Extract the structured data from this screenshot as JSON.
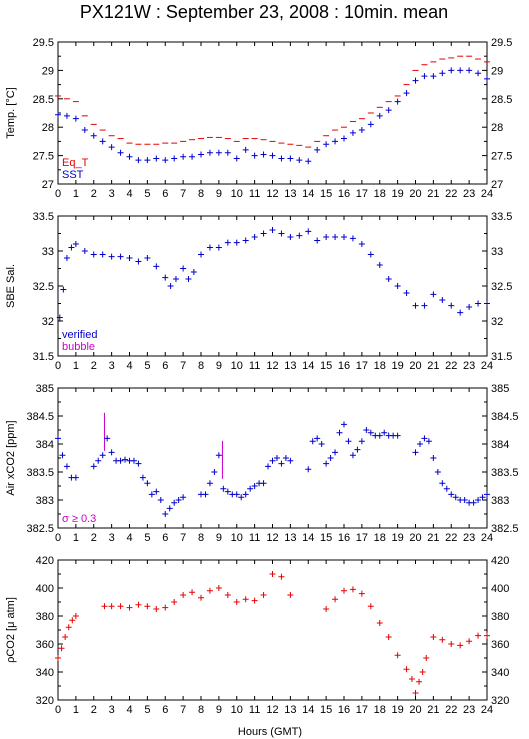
{
  "title": "PX121W : September 23, 2008 : 10min. mean",
  "xlabel": "Hours (GMT)",
  "colors": {
    "red": "#e60000",
    "blue": "#0000cc",
    "magenta": "#cc00cc",
    "axis": "#000000"
  },
  "chart_data": [
    {
      "type": "scatter",
      "id": "temp",
      "ylabel": "Temp. [°C]",
      "ylim": [
        27,
        29.5
      ],
      "yticks": [
        27,
        27.5,
        28,
        28.5,
        29,
        29.5
      ],
      "xlim": [
        0,
        24
      ],
      "xticks": [
        0,
        1,
        2,
        3,
        4,
        5,
        6,
        7,
        8,
        9,
        10,
        11,
        12,
        13,
        14,
        15,
        16,
        17,
        18,
        19,
        20,
        21,
        22,
        23,
        24
      ],
      "legend": [
        "Eq_T",
        "SST"
      ],
      "series": [
        {
          "name": "Eq_T",
          "color": "#e60000",
          "x": [
            0,
            0.5,
            1,
            1.5,
            2,
            2.5,
            3,
            3.5,
            4,
            4.5,
            5,
            5.5,
            6,
            6.5,
            7,
            7.5,
            8,
            8.5,
            9,
            9.5,
            10,
            10.5,
            11,
            11.5,
            12,
            12.5,
            13,
            13.5,
            14,
            14.5,
            15,
            15.5,
            16,
            16.5,
            17,
            17.5,
            18,
            18.5,
            19,
            19.5,
            20,
            20.5,
            21,
            21.5,
            22,
            22.5,
            23,
            23.5,
            24
          ],
          "y": [
            28.55,
            28.5,
            28.45,
            28.2,
            28.05,
            27.95,
            27.85,
            27.8,
            27.72,
            27.7,
            27.7,
            27.7,
            27.72,
            27.72,
            27.75,
            27.78,
            27.8,
            27.82,
            27.82,
            27.8,
            27.75,
            27.8,
            27.8,
            27.78,
            27.75,
            27.72,
            27.7,
            27.68,
            27.65,
            27.75,
            27.85,
            27.95,
            28.0,
            28.1,
            28.15,
            28.25,
            28.35,
            28.45,
            28.55,
            28.75,
            29.0,
            29.1,
            29.15,
            29.2,
            29.22,
            29.25,
            29.25,
            29.2,
            29.15
          ]
        },
        {
          "name": "SST",
          "color": "#0000cc",
          "x": [
            0,
            0.5,
            1,
            1.5,
            2,
            2.5,
            3,
            3.5,
            4,
            4.5,
            5,
            5.5,
            6,
            6.5,
            7,
            7.5,
            8,
            8.5,
            9,
            9.5,
            10,
            10.5,
            11,
            11.5,
            12,
            12.5,
            13,
            13.5,
            14,
            14.5,
            15,
            15.5,
            16,
            16.5,
            17,
            17.5,
            18,
            18.5,
            19,
            19.5,
            20,
            20.5,
            21,
            21.5,
            22,
            22.5,
            23,
            23.5,
            24
          ],
          "y": [
            28.22,
            28.2,
            28.15,
            27.95,
            27.85,
            27.75,
            27.65,
            27.55,
            27.48,
            27.42,
            27.42,
            27.45,
            27.42,
            27.45,
            27.48,
            27.48,
            27.52,
            27.55,
            27.55,
            27.55,
            27.45,
            27.6,
            27.5,
            27.52,
            27.5,
            27.45,
            27.45,
            27.42,
            27.4,
            27.6,
            27.7,
            27.75,
            27.8,
            27.9,
            27.95,
            28.05,
            28.2,
            28.3,
            28.45,
            28.6,
            28.82,
            28.9,
            28.9,
            28.95,
            29.0,
            29.0,
            29.0,
            28.95,
            28.85
          ]
        }
      ]
    },
    {
      "type": "scatter",
      "id": "sal",
      "ylabel": "SBE Sal.",
      "ylim": [
        31.5,
        33.5
      ],
      "yticks": [
        31.5,
        32,
        32.5,
        33,
        33.5
      ],
      "xlim": [
        0,
        24
      ],
      "xticks": [
        0,
        1,
        2,
        3,
        4,
        5,
        6,
        7,
        8,
        9,
        10,
        11,
        12,
        13,
        14,
        15,
        16,
        17,
        18,
        19,
        20,
        21,
        22,
        23,
        24
      ],
      "legend": [
        "verified",
        "bubble"
      ],
      "series": [
        {
          "name": "verified",
          "color": "#0000cc",
          "x": [
            0.1,
            0.3,
            0.5,
            0.75,
            1,
            1.5,
            2,
            2.5,
            3,
            3.5,
            4,
            4.5,
            5,
            5.5,
            6,
            6.3,
            6.6,
            7,
            7.3,
            7.6,
            8,
            8.5,
            9,
            9.5,
            10,
            10.5,
            11,
            11.5,
            12,
            12.5,
            13,
            13.5,
            14,
            14.5,
            15,
            15.5,
            16,
            16.5,
            17,
            17.5,
            18,
            18.5,
            19,
            19.5,
            20,
            20.5,
            21,
            21.5,
            22,
            22.5,
            23,
            23.5,
            24
          ],
          "y": [
            32.05,
            32.45,
            32.9,
            33.05,
            33.1,
            33.0,
            32.95,
            32.95,
            32.92,
            32.92,
            32.9,
            32.85,
            32.9,
            32.78,
            32.62,
            32.5,
            32.6,
            32.75,
            32.6,
            32.7,
            32.95,
            33.05,
            33.05,
            33.12,
            33.12,
            33.15,
            33.2,
            33.25,
            33.3,
            33.25,
            33.2,
            33.22,
            33.28,
            33.15,
            33.2,
            33.2,
            33.2,
            33.18,
            33.1,
            32.95,
            32.8,
            32.6,
            32.5,
            32.4,
            32.22,
            32.22,
            32.38,
            32.3,
            32.22,
            32.12,
            32.2,
            32.25,
            32.25
          ]
        }
      ]
    },
    {
      "type": "scatter",
      "id": "xco2",
      "ylabel": "Air xCO2 [ppm]",
      "ylim": [
        382.5,
        385
      ],
      "yticks": [
        382.5,
        383,
        383.5,
        384,
        384.5,
        385
      ],
      "xlim": [
        0,
        24
      ],
      "xticks": [
        0,
        1,
        2,
        3,
        4,
        5,
        6,
        7,
        8,
        9,
        10,
        11,
        12,
        13,
        14,
        15,
        16,
        17,
        18,
        19,
        20,
        21,
        22,
        23,
        24
      ],
      "legend": [
        "σ ≥ 0.3"
      ],
      "series": [
        {
          "name": "σ ≥ 0.3",
          "color": "#cc00cc",
          "x": [
            2.6,
            9.2
          ],
          "y": [
            384.2,
            383.7
          ]
        },
        {
          "name": "",
          "color": "#0000cc",
          "x": [
            0,
            0.25,
            0.5,
            0.75,
            1,
            2,
            2.25,
            2.5,
            2.75,
            3,
            3.25,
            3.5,
            3.75,
            4,
            4.25,
            4.5,
            4.75,
            5,
            5.25,
            5.5,
            5.75,
            6,
            6.25,
            6.5,
            6.75,
            7,
            8,
            8.25,
            8.5,
            8.75,
            9,
            9.25,
            9.5,
            9.75,
            10,
            10.25,
            10.5,
            10.75,
            11,
            11.25,
            11.5,
            11.75,
            12,
            12.25,
            12.5,
            12.75,
            13,
            14,
            14.25,
            14.5,
            14.75,
            15,
            15.25,
            15.5,
            15.75,
            16,
            16.25,
            16.5,
            16.75,
            17,
            17.25,
            17.5,
            17.75,
            18,
            18.25,
            18.5,
            18.75,
            19,
            20,
            20.25,
            20.5,
            20.75,
            21,
            21.25,
            21.5,
            21.75,
            22,
            22.25,
            22.5,
            22.75,
            23,
            23.25,
            23.5,
            23.75,
            24
          ],
          "y": [
            384.1,
            383.8,
            383.6,
            383.4,
            383.4,
            383.6,
            383.7,
            383.8,
            384.1,
            383.85,
            383.7,
            383.7,
            383.72,
            383.7,
            383.7,
            383.65,
            383.4,
            383.3,
            383.1,
            383.15,
            383.0,
            382.75,
            382.85,
            382.95,
            383.0,
            383.05,
            383.1,
            383.1,
            383.3,
            383.5,
            383.8,
            383.2,
            383.15,
            383.1,
            383.1,
            383.05,
            383.1,
            383.2,
            383.25,
            383.3,
            383.3,
            383.6,
            383.7,
            383.75,
            383.65,
            383.75,
            383.7,
            383.55,
            384.05,
            384.1,
            384.0,
            383.65,
            383.75,
            383.85,
            384.2,
            384.35,
            384.05,
            383.8,
            383.9,
            384.05,
            384.25,
            384.2,
            384.15,
            384.15,
            384.2,
            384.15,
            384.15,
            384.15,
            383.85,
            384.0,
            384.1,
            384.05,
            383.75,
            383.5,
            383.3,
            383.2,
            383.1,
            383.05,
            383.0,
            383.0,
            382.95,
            382.95,
            383.0,
            383.05,
            383.1
          ]
        }
      ]
    },
    {
      "type": "scatter",
      "id": "pco2",
      "ylabel": "ρCO2 [μ atm]",
      "ylim": [
        320,
        420
      ],
      "yticks": [
        320,
        340,
        360,
        380,
        400,
        420
      ],
      "xlim": [
        0,
        24
      ],
      "xticks": [
        0,
        1,
        2,
        3,
        4,
        5,
        6,
        7,
        8,
        9,
        10,
        11,
        12,
        13,
        14,
        15,
        16,
        17,
        18,
        19,
        20,
        21,
        22,
        23,
        24
      ],
      "series": [
        {
          "name": "",
          "color": "#e60000",
          "x": [
            0,
            0.2,
            0.4,
            0.6,
            0.8,
            1,
            2.6,
            3,
            3.5,
            4,
            4.5,
            5,
            5.5,
            6,
            6.5,
            7,
            7.5,
            8,
            8.5,
            9,
            9.5,
            10,
            10.5,
            11,
            11.5,
            12,
            12.5,
            13,
            15,
            15.5,
            16,
            16.5,
            17,
            17.5,
            18,
            18.5,
            19,
            19.5,
            19.8,
            20,
            20.2,
            20.4,
            20.6,
            21,
            21.5,
            22,
            22.5,
            23,
            23.5,
            24
          ],
          "y": [
            350,
            357,
            365,
            372,
            377,
            380,
            387,
            387,
            387,
            386,
            388,
            387,
            385,
            386,
            390,
            395,
            397,
            393,
            398,
            400,
            395,
            390,
            392,
            391,
            395,
            410,
            408,
            395,
            385,
            392,
            398,
            399,
            396,
            387,
            375,
            365,
            352,
            342,
            335,
            325,
            333,
            340,
            350,
            365,
            363,
            360,
            359,
            362,
            366,
            366
          ]
        }
      ]
    }
  ]
}
